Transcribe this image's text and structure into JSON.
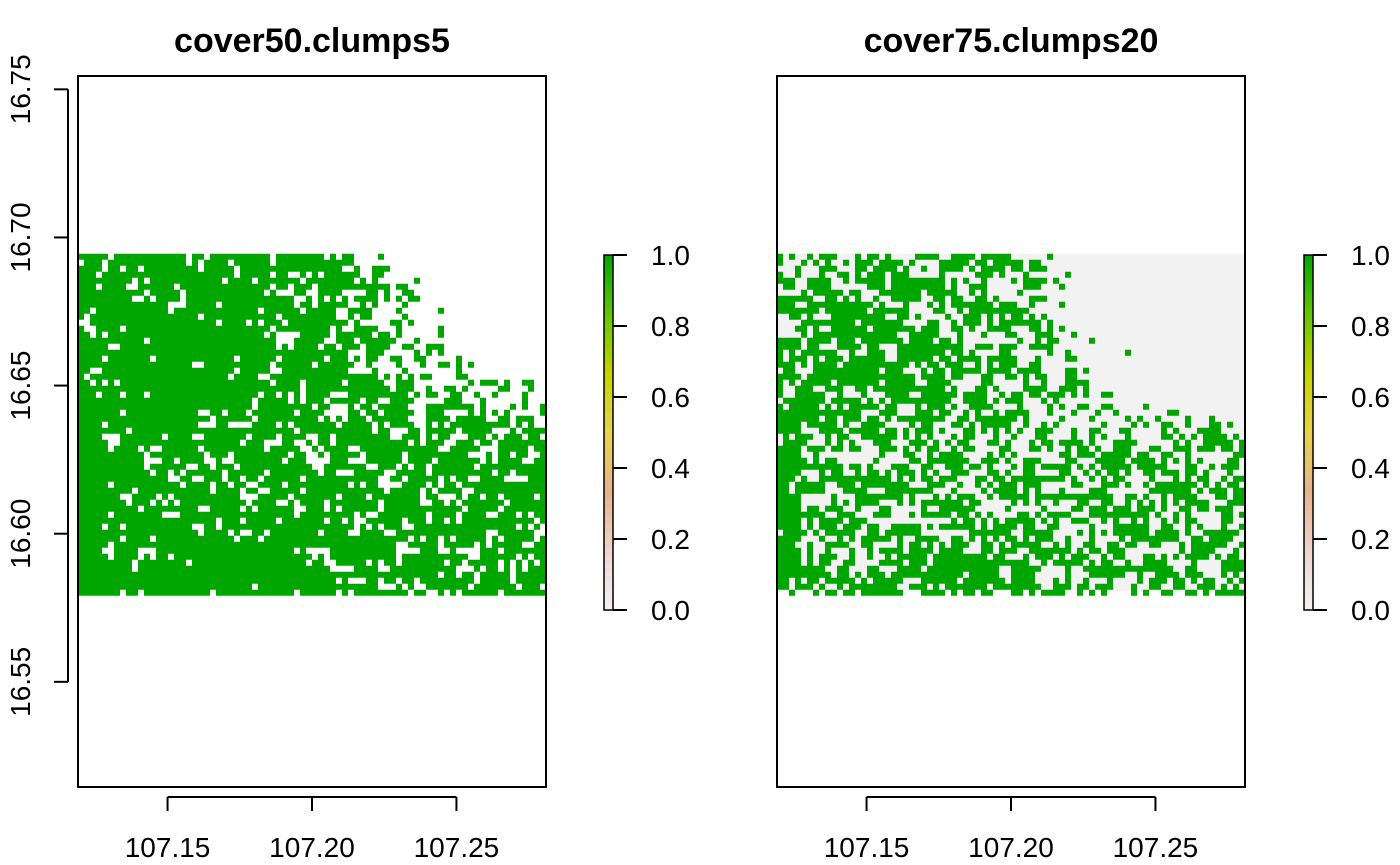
{
  "chart_data": [
    {
      "type": "heatmap",
      "title": "cover50.clumps5",
      "xlabel": "",
      "ylabel": "",
      "xlim": [
        107.119,
        107.281
      ],
      "ylim": [
        16.5145,
        16.7545
      ],
      "x_ticks": [
        "107.15",
        "107.20",
        "107.25"
      ],
      "y_ticks": [
        "16.55",
        "16.60",
        "16.65",
        "16.70",
        "16.75"
      ],
      "raster_extent": {
        "x": [
          107.119,
          107.281
        ],
        "y": [
          16.5805,
          16.6945
        ]
      },
      "background_value_color": "#ffffff",
      "forest_value": 1.0,
      "nonforest_value": 0.0,
      "legend": {
        "position": "right",
        "ticks": [
          "0.0",
          "0.2",
          "0.4",
          "0.6",
          "0.8",
          "1.0"
        ],
        "range": [
          0,
          1
        ]
      },
      "mask_seed": 11,
      "coverage": "high"
    },
    {
      "type": "heatmap",
      "title": "cover75.clumps20",
      "xlabel": "",
      "ylabel": "",
      "xlim": [
        107.119,
        107.281
      ],
      "ylim": [
        16.5145,
        16.7545
      ],
      "x_ticks": [
        "107.15",
        "107.20",
        "107.25"
      ],
      "y_ticks": [],
      "raster_extent": {
        "x": [
          107.119,
          107.281
        ],
        "y": [
          16.5805,
          16.6945
        ]
      },
      "background_value_color": "#f2f2f2",
      "forest_value": 1.0,
      "nonforest_value": 0.0,
      "legend": {
        "position": "right",
        "ticks": [
          "0.0",
          "0.2",
          "0.4",
          "0.6",
          "0.8",
          "1.0"
        ],
        "range": [
          0,
          1
        ]
      },
      "mask_seed": 29,
      "coverage": "lower"
    }
  ],
  "colors": {
    "forest": "#00a600",
    "ramp": [
      "#f2f2f2",
      "#eed5cc",
      "#e6b38c",
      "#e8d34a",
      "#c7d300",
      "#63c600",
      "#00a600"
    ],
    "frame": "#000000"
  }
}
